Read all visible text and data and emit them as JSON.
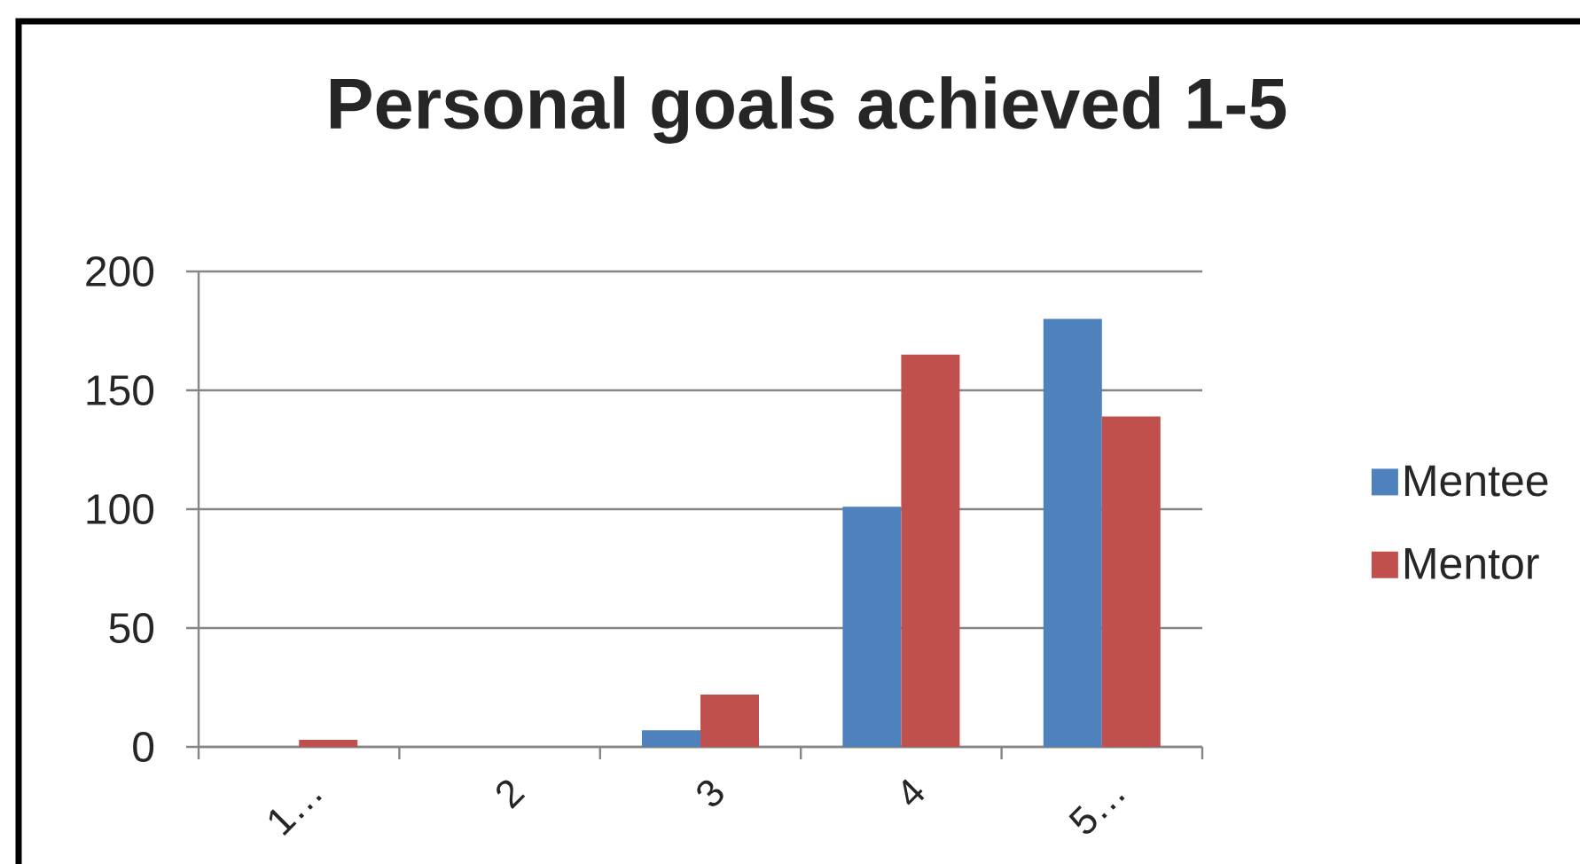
{
  "chart_data": {
    "type": "bar",
    "title": "Personal goals achieved 1-5",
    "categories": [
      "1…",
      "2",
      "3",
      "4",
      "5…"
    ],
    "series": [
      {
        "name": "Mentee",
        "color": "#4f81bd",
        "values": [
          0,
          0,
          7,
          101,
          180
        ]
      },
      {
        "name": "Mentor",
        "color": "#c0504d",
        "values": [
          3,
          0,
          22,
          165,
          139
        ]
      }
    ],
    "ylim": [
      0,
      200
    ],
    "yticks": [
      0,
      50,
      100,
      150,
      200
    ],
    "grid": "y",
    "legend": "right"
  }
}
